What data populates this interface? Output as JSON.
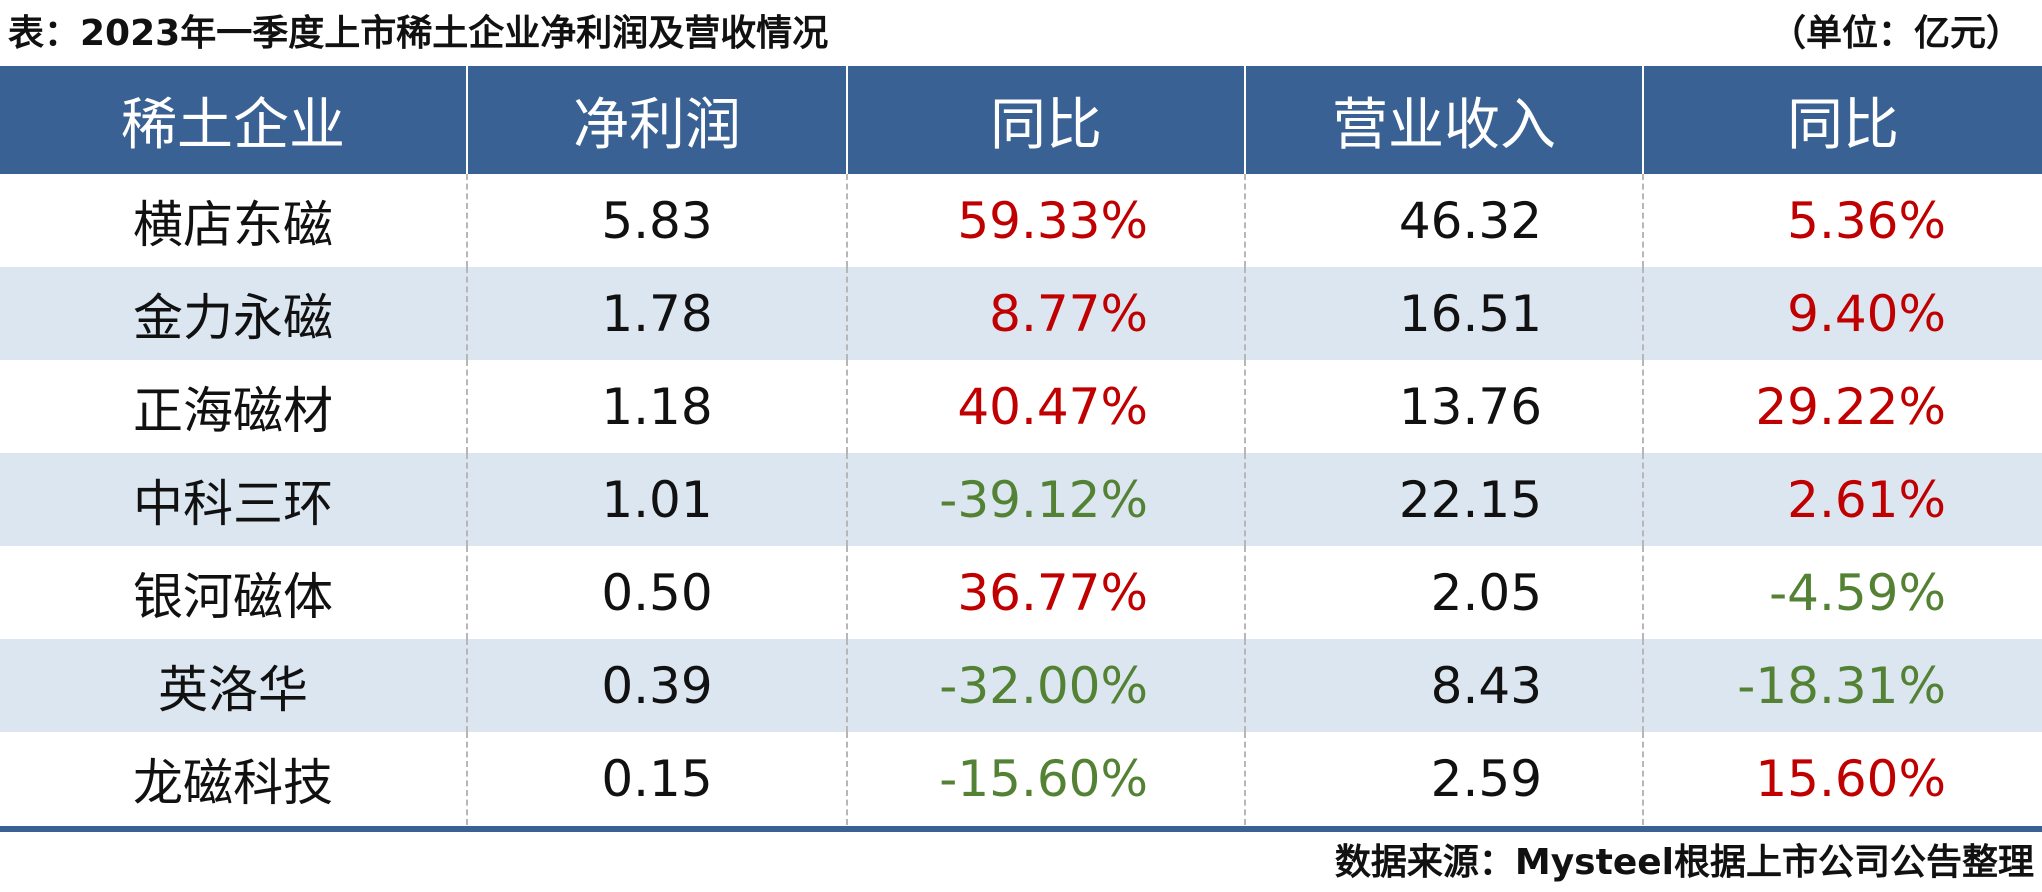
{
  "title": "表：2023年一季度上市稀土企业净利润及营收情况",
  "unit": "（单位：亿元）",
  "columns": [
    "稀土企业",
    "净利润",
    "同比",
    "营业收入",
    "同比"
  ],
  "rows": [
    {
      "company": "横店东磁",
      "net_profit": "5.83",
      "net_yoy": "59.33%",
      "net_trend": "pos",
      "revenue": "46.32",
      "rev_yoy": "5.36%",
      "rev_trend": "pos"
    },
    {
      "company": "金力永磁",
      "net_profit": "1.78",
      "net_yoy": "8.77%",
      "net_trend": "pos",
      "revenue": "16.51",
      "rev_yoy": "9.40%",
      "rev_trend": "pos"
    },
    {
      "company": "正海磁材",
      "net_profit": "1.18",
      "net_yoy": "40.47%",
      "net_trend": "pos",
      "revenue": "13.76",
      "rev_yoy": "29.22%",
      "rev_trend": "pos"
    },
    {
      "company": "中科三环",
      "net_profit": "1.01",
      "net_yoy": "-39.12%",
      "net_trend": "neg",
      "revenue": "22.15",
      "rev_yoy": "2.61%",
      "rev_trend": "pos"
    },
    {
      "company": "银河磁体",
      "net_profit": "0.50",
      "net_yoy": "36.77%",
      "net_trend": "pos",
      "revenue": "2.05",
      "rev_yoy": "-4.59%",
      "rev_trend": "neg"
    },
    {
      "company": "英洛华",
      "net_profit": "0.39",
      "net_yoy": "-32.00%",
      "net_trend": "neg",
      "revenue": "8.43",
      "rev_yoy": "-18.31%",
      "rev_trend": "neg"
    },
    {
      "company": "龙磁科技",
      "net_profit": "0.15",
      "net_yoy": "-15.60%",
      "net_trend": "neg",
      "revenue": "2.59",
      "rev_yoy": "15.60%",
      "rev_trend": "pos"
    }
  ],
  "source": "数据来源：Mysteel根据上市公司公告整理",
  "colors": {
    "header_bg": "#3a6193",
    "stripe_bg": "#dce6f1",
    "positive": "#c00000",
    "negative": "#548235"
  }
}
